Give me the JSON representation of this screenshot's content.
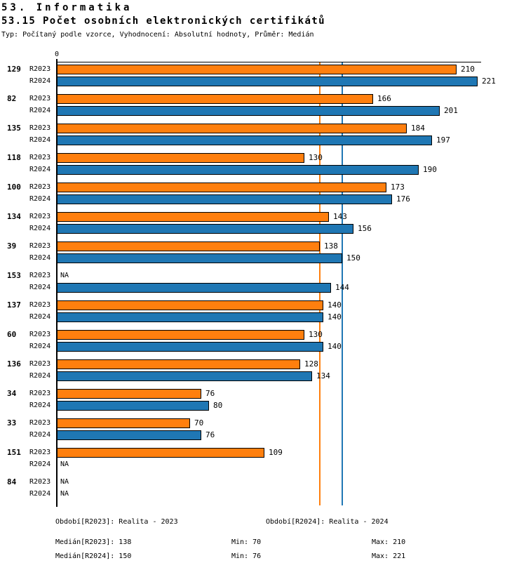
{
  "header": {
    "title": "53. Informatika",
    "subtitle": "53.15 Počet osobních elektronických certifikátů",
    "meta": "Typ: Počítaný podle vzorce, Vyhodnocení: Absolutní hodnoty, Průměr: Medián"
  },
  "chart_data": {
    "type": "bar",
    "orientation": "horizontal",
    "title": "53.15 Počet osobních elektronických certifikátů",
    "xlabel": "",
    "ylabel": "",
    "xlim": [
      0,
      223
    ],
    "zero_tick_label": "0",
    "na_label": "NA",
    "series_labels": [
      "R2023",
      "R2024"
    ],
    "colors": {
      "r2023": "#ff7f0e",
      "r2024": "#1f77b4",
      "axis": "#000000"
    },
    "median_lines": [
      {
        "series": "R2023",
        "value": 138,
        "color": "#ff7f0e"
      },
      {
        "series": "R2024",
        "value": 150,
        "color": "#1f77b4"
      }
    ],
    "groups": [
      {
        "id": "129",
        "r2023": 210,
        "r2024": 221
      },
      {
        "id": "82",
        "r2023": 166,
        "r2024": 201
      },
      {
        "id": "135",
        "r2023": 184,
        "r2024": 197
      },
      {
        "id": "118",
        "r2023": 130,
        "r2024": 190
      },
      {
        "id": "100",
        "r2023": 173,
        "r2024": 176
      },
      {
        "id": "134",
        "r2023": 143,
        "r2024": 156
      },
      {
        "id": "39",
        "r2023": 138,
        "r2024": 150
      },
      {
        "id": "153",
        "r2023": null,
        "r2024": 144
      },
      {
        "id": "137",
        "r2023": 140,
        "r2024": 140
      },
      {
        "id": "60",
        "r2023": 130,
        "r2024": 140
      },
      {
        "id": "136",
        "r2023": 128,
        "r2024": 134
      },
      {
        "id": "34",
        "r2023": 76,
        "r2024": 80
      },
      {
        "id": "33",
        "r2023": 70,
        "r2024": 76
      },
      {
        "id": "151",
        "r2023": 109,
        "r2024": null
      },
      {
        "id": "84",
        "r2023": null,
        "r2024": null
      }
    ]
  },
  "footer": {
    "legend": [
      {
        "label": "Období[R2023]: Realita - 2023"
      },
      {
        "label": "Období[R2024]: Realita - 2024"
      }
    ],
    "stats": [
      {
        "median": "Medián[R2023]: 138",
        "min": "Min: 70",
        "max": "Max: 210"
      },
      {
        "median": "Medián[R2024]: 150",
        "min": "Min: 76",
        "max": "Max: 221"
      }
    ]
  }
}
